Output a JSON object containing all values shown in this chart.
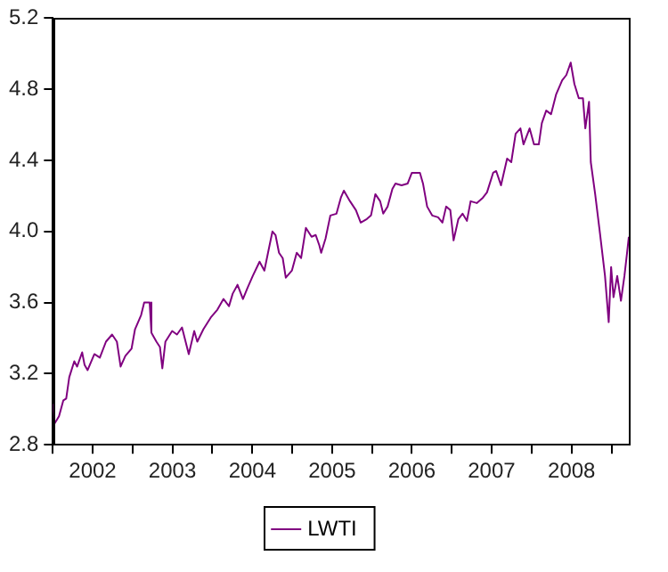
{
  "chart_data": {
    "type": "line",
    "legend": "bottom",
    "grid": false,
    "marker": "none",
    "line_style": "solid",
    "xlim": [
      "2002-01-01",
      "2009-03-21"
    ],
    "xticks": [
      {
        "value": "2002-01-01",
        "label": null
      },
      {
        "value": "2002-07-02",
        "label": "2002"
      },
      {
        "value": "2003-01-01",
        "label": null
      },
      {
        "value": "2003-07-02",
        "label": "2003"
      },
      {
        "value": "2004-01-01",
        "label": null
      },
      {
        "value": "2004-07-02",
        "label": "2004"
      },
      {
        "value": "2005-01-01",
        "label": null
      },
      {
        "value": "2005-07-02",
        "label": "2005"
      },
      {
        "value": "2006-01-01",
        "label": null
      },
      {
        "value": "2006-07-02",
        "label": "2006"
      },
      {
        "value": "2007-01-01",
        "label": null
      },
      {
        "value": "2007-07-02",
        "label": "2007"
      },
      {
        "value": "2008-01-01",
        "label": null
      },
      {
        "value": "2008-07-02",
        "label": "2008"
      },
      {
        "value": "2009-01-01",
        "label": null
      }
    ],
    "ylim": [
      2.8,
      5.2
    ],
    "yticks": [
      2.8,
      3.2,
      3.6,
      {
        "value": 4,
        "label": "4.0"
      },
      4.4,
      4.8,
      5.2
    ],
    "series": [
      {
        "name": "LWTI",
        "color": "#800080",
        "x": [
          "2002-01-01",
          "2002-01-09",
          "2002-01-29",
          "2002-02-18",
          "2002-03-03",
          "2002-03-17",
          "2002-04-09",
          "2002-04-22",
          "2002-05-15",
          "2002-05-26",
          "2002-06-09",
          "2002-07-10",
          "2002-08-04",
          "2002-09-01",
          "2002-09-29",
          "2002-10-21",
          "2002-11-07",
          "2002-11-29",
          "2002-12-27",
          "2003-01-12",
          "2003-02-09",
          "2003-02-23",
          "2003-03-20",
          "2003-03-28",
          "2003-04-20",
          "2003-05-06",
          "2003-05-17",
          "2003-05-31",
          "2003-07-01",
          "2003-07-23",
          "2003-08-15",
          "2003-09-15",
          "2003-10-10",
          "2003-10-24",
          "2003-11-21",
          "2003-12-27",
          "2004-01-24",
          "2004-02-21",
          "2004-03-17",
          "2004-04-03",
          "2004-04-25",
          "2004-05-20",
          "2004-06-09",
          "2004-07-04",
          "2004-08-04",
          "2004-08-26",
          "2004-09-15",
          "2004-10-02",
          "2004-10-16",
          "2004-11-01",
          "2004-11-18",
          "2004-12-02",
          "2004-12-30",
          "2005-01-21",
          "2005-02-10",
          "2005-03-04",
          "2005-03-30",
          "2005-04-18",
          "2005-05-05",
          "2005-05-13",
          "2005-06-02",
          "2005-06-24",
          "2005-07-22",
          "2005-08-11",
          "2005-08-25",
          "2005-09-22",
          "2005-10-19",
          "2005-11-10",
          "2005-12-08",
          "2005-12-27",
          "2006-01-16",
          "2006-02-07",
          "2006-02-21",
          "2006-03-13",
          "2006-04-04",
          "2006-04-18",
          "2006-05-16",
          "2006-06-13",
          "2006-07-02",
          "2006-08-08",
          "2006-08-22",
          "2006-09-10",
          "2006-10-03",
          "2006-10-30",
          "2006-11-19",
          "2006-12-06",
          "2006-12-25",
          "2007-01-09",
          "2007-01-31",
          "2007-02-19",
          "2007-03-11",
          "2007-03-28",
          "2007-04-25",
          "2007-05-23",
          "2007-06-11",
          "2007-07-09",
          "2007-07-23",
          "2007-08-14",
          "2007-09-11",
          "2007-09-30",
          "2007-10-20",
          "2007-11-11",
          "2007-11-25",
          "2007-12-23",
          "2008-01-12",
          "2008-02-03",
          "2008-02-17",
          "2008-03-08",
          "2008-03-30",
          "2008-04-22",
          "2008-05-20",
          "2008-06-08",
          "2008-06-28",
          "2008-07-15",
          "2008-08-04",
          "2008-08-23",
          "2008-09-03",
          "2008-09-20",
          "2008-09-28",
          "2008-10-18",
          "2008-11-09",
          "2008-12-02",
          "2008-12-19",
          "2008-12-30",
          "2009-01-10",
          "2009-01-27",
          "2009-02-13",
          "2009-03-01",
          "2009-03-13",
          "2009-03-21"
        ],
        "values": [
          3.03,
          2.92,
          2.96,
          3.05,
          3.06,
          3.18,
          3.27,
          3.24,
          3.32,
          3.25,
          3.22,
          3.31,
          3.29,
          3.38,
          3.42,
          3.38,
          3.24,
          3.3,
          3.34,
          3.45,
          3.53,
          3.6,
          3.6,
          3.43,
          3.38,
          3.35,
          3.23,
          3.38,
          3.44,
          3.42,
          3.46,
          3.31,
          3.44,
          3.38,
          3.45,
          3.52,
          3.56,
          3.62,
          3.58,
          3.65,
          3.7,
          3.62,
          3.68,
          3.75,
          3.83,
          3.78,
          3.9,
          4.0,
          3.98,
          3.88,
          3.85,
          3.74,
          3.78,
          3.88,
          3.85,
          4.02,
          3.97,
          3.98,
          3.92,
          3.88,
          3.96,
          4.09,
          4.1,
          4.19,
          4.23,
          4.17,
          4.12,
          4.05,
          4.07,
          4.09,
          4.21,
          4.17,
          4.1,
          4.14,
          4.24,
          4.27,
          4.26,
          4.27,
          4.33,
          4.33,
          4.27,
          4.14,
          4.09,
          4.08,
          4.05,
          4.14,
          4.12,
          3.95,
          4.07,
          4.1,
          4.06,
          4.17,
          4.16,
          4.19,
          4.22,
          4.33,
          4.34,
          4.26,
          4.41,
          4.39,
          4.55,
          4.58,
          4.49,
          4.58,
          4.49,
          4.49,
          4.61,
          4.68,
          4.66,
          4.77,
          4.85,
          4.88,
          4.95,
          4.83,
          4.75,
          4.75,
          4.58,
          4.73,
          4.39,
          4.21,
          3.99,
          3.75,
          3.49,
          3.8,
          3.63,
          3.75,
          3.61,
          3.75,
          3.88,
          3.97
        ]
      }
    ]
  }
}
